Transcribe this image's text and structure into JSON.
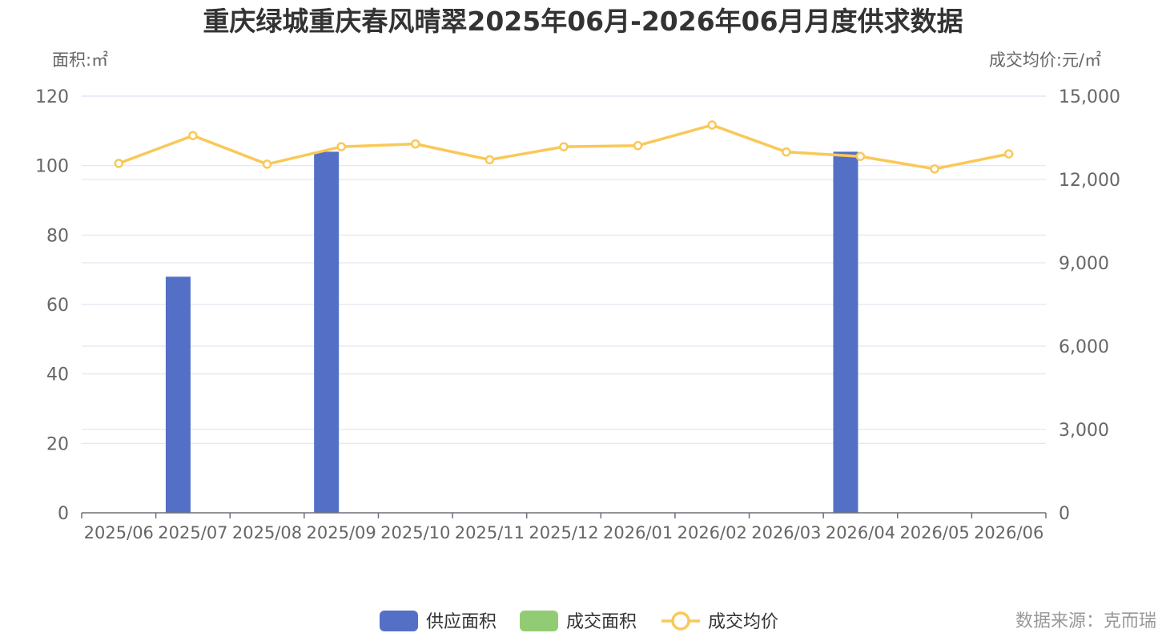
{
  "chart_data": {
    "type": "bar",
    "title": "重庆绿城重庆春风晴翠2025年06月-2026年06月月度供求数据",
    "y_left_label": "面积:㎡",
    "y_right_label": "成交均价:元/㎡",
    "categories": [
      "2025/06",
      "2025/07",
      "2025/08",
      "2025/09",
      "2025/10",
      "2025/11",
      "2025/12",
      "2026/01",
      "2026/02",
      "2026/03",
      "2026/04",
      "2026/05",
      "2026/06"
    ],
    "y_left_ticks": [
      "0",
      "20",
      "40",
      "60",
      "80",
      "100",
      "120"
    ],
    "y_right_ticks": [
      "0",
      "3,000",
      "6,000",
      "9,000",
      "12,000",
      "15,000"
    ],
    "ylim_left": [
      0,
      120
    ],
    "ylim_right": [
      0,
      15000
    ],
    "series": [
      {
        "name": "供应面积",
        "type": "bar",
        "axis": "left",
        "color": "#5470c6",
        "values": [
          0,
          68,
          0,
          104,
          0,
          0,
          0,
          0,
          0,
          0,
          104,
          0,
          0
        ]
      },
      {
        "name": "成交面积",
        "type": "bar",
        "axis": "left",
        "color": "#91cc75",
        "values": [
          0,
          0,
          0,
          0,
          0,
          0,
          0,
          0,
          0,
          0,
          0,
          0,
          0
        ]
      },
      {
        "name": "成交均价",
        "type": "line",
        "axis": "right",
        "color": "#fac858",
        "values": [
          12580,
          13580,
          12550,
          13180,
          13280,
          12710,
          13180,
          13220,
          13960,
          12990,
          12830,
          12380,
          12920
        ]
      }
    ],
    "grid": true,
    "legend_position": "bottom-center",
    "source": "数据来源：克而瑞"
  }
}
